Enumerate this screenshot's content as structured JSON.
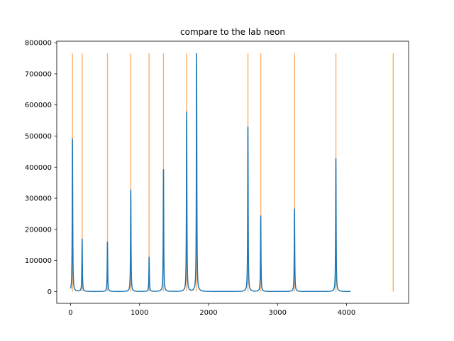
{
  "chart_data": {
    "type": "line",
    "title": "compare to the lab neon",
    "xlabel": "",
    "ylabel": "",
    "xlim": [
      -200,
      4900
    ],
    "ylim": [
      -38000,
      805000
    ],
    "xticks": [
      0,
      1000,
      2000,
      3000,
      4000
    ],
    "yticks": [
      0,
      100000,
      200000,
      300000,
      400000,
      500000,
      600000,
      700000,
      800000
    ],
    "grid": false,
    "colors": {
      "spectrum": "#1f77b4",
      "reference": "#ff7f0e"
    },
    "spectrum": {
      "baseline": 0,
      "x_start": 0,
      "x_end": 4060,
      "peaks": [
        {
          "x": 28,
          "y": 492000
        },
        {
          "x": 168,
          "y": 170000
        },
        {
          "x": 535,
          "y": 160000
        },
        {
          "x": 873,
          "y": 328000
        },
        {
          "x": 1139,
          "y": 111000
        },
        {
          "x": 1347,
          "y": 393000
        },
        {
          "x": 1683,
          "y": 578000
        },
        {
          "x": 1827,
          "y": 766000
        },
        {
          "x": 2571,
          "y": 530000
        },
        {
          "x": 2757,
          "y": 244000
        },
        {
          "x": 3246,
          "y": 267000
        },
        {
          "x": 3846,
          "y": 428000
        }
      ]
    },
    "reference_lines": {
      "height": 766000,
      "x": [
        28,
        168,
        535,
        873,
        1139,
        1347,
        1683,
        1827,
        2571,
        2757,
        3246,
        3846,
        4677
      ]
    }
  }
}
